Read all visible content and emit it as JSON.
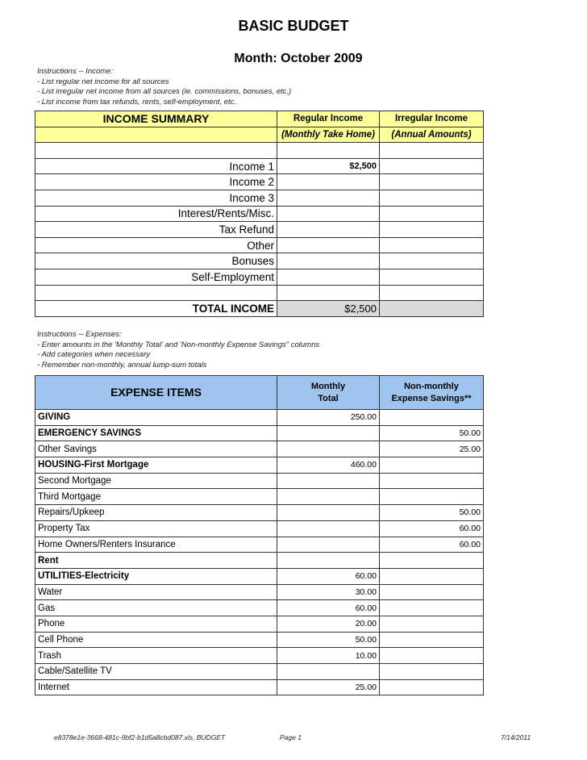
{
  "title": "BASIC BUDGET",
  "month": "Month:  October 2009",
  "income_instructions": [
    "Instructions -- Income:",
    " - List regular net income for all sources",
    " - List irregular net income from all sources (ie. commissions, bonuses, etc.)",
    " - List income from tax refunds, rents, self-employment, etc."
  ],
  "income": {
    "header": "INCOME SUMMARY",
    "col1": "Regular Income",
    "col2": "Irregular Income",
    "col1_sub": "(Monthly Take Home)",
    "col2_sub": "(Annual Amounts)",
    "rows": [
      {
        "label": "Income 1",
        "regular": "$2,500",
        "irregular": ""
      },
      {
        "label": "Income 2",
        "regular": "",
        "irregular": ""
      },
      {
        "label": "Income 3",
        "regular": "",
        "irregular": ""
      },
      {
        "label": "Interest/Rents/Misc.",
        "regular": "",
        "irregular": ""
      },
      {
        "label": "Tax Refund",
        "regular": "",
        "irregular": ""
      },
      {
        "label": "Other",
        "regular": "",
        "irregular": ""
      },
      {
        "label": "Bonuses",
        "regular": "",
        "irregular": ""
      },
      {
        "label": "Self-Employment",
        "regular": "",
        "irregular": ""
      }
    ],
    "total_label": "TOTAL INCOME",
    "total_regular": "$2,500",
    "total_irregular": ""
  },
  "expense_instructions": [
    "Instructions -- Expenses:",
    " - Enter amounts in the 'Monthly Total' and 'Non-monthly Expense Savings\" columns",
    " - Add categories when necessary",
    " - Remember non-monthly, annual lump-sum totals"
  ],
  "expenses": {
    "header": "EXPENSE ITEMS",
    "col1_a": "Monthly",
    "col1_b": "Total",
    "col2_a": "Non-monthly",
    "col2_b": "Expense Savings**",
    "rows": [
      {
        "label": "GIVING",
        "bold": true,
        "monthly": "250.00",
        "nonmonthly": ""
      },
      {
        "label": "EMERGENCY SAVINGS",
        "bold": true,
        "monthly": "",
        "nonmonthly": "50.00"
      },
      {
        "label": "Other Savings",
        "bold": false,
        "monthly": "",
        "nonmonthly": "25.00"
      },
      {
        "label": "HOUSING-First Mortgage",
        "bold": true,
        "monthly": "460.00",
        "nonmonthly": ""
      },
      {
        "label": "Second Mortgage",
        "bold": false,
        "monthly": "",
        "nonmonthly": ""
      },
      {
        "label": "Third Mortgage",
        "bold": false,
        "monthly": "",
        "nonmonthly": ""
      },
      {
        "label": "Repairs/Upkeep",
        "bold": false,
        "monthly": "",
        "nonmonthly": "50.00"
      },
      {
        "label": "Property Tax",
        "bold": false,
        "monthly": "",
        "nonmonthly": "60.00"
      },
      {
        "label": "Home Owners/Renters Insurance",
        "bold": false,
        "monthly": "",
        "nonmonthly": "60.00"
      },
      {
        "label": "Rent",
        "bold": true,
        "monthly": "",
        "nonmonthly": ""
      },
      {
        "label": "UTILITIES-Electricity",
        "bold": true,
        "monthly": "60.00",
        "nonmonthly": ""
      },
      {
        "label": "Water",
        "bold": false,
        "monthly": "30.00",
        "nonmonthly": ""
      },
      {
        "label": "Gas",
        "bold": false,
        "monthly": "60.00",
        "nonmonthly": ""
      },
      {
        "label": "Phone",
        "bold": false,
        "monthly": "20.00",
        "nonmonthly": ""
      },
      {
        "label": "Cell Phone",
        "bold": false,
        "monthly": "50.00",
        "nonmonthly": ""
      },
      {
        "label": "Trash",
        "bold": false,
        "monthly": "10.00",
        "nonmonthly": ""
      },
      {
        "label": "Cable/Satellite TV",
        "bold": false,
        "monthly": "",
        "nonmonthly": ""
      },
      {
        "label": "Internet",
        "bold": false,
        "monthly": "25.00",
        "nonmonthly": ""
      }
    ]
  },
  "footer": {
    "file": "e8378e1e-3668-481c-9bf2-b1d5a8cbd087.xls, BUDGET",
    "page": "Page 1",
    "date": "7/14/2011"
  }
}
